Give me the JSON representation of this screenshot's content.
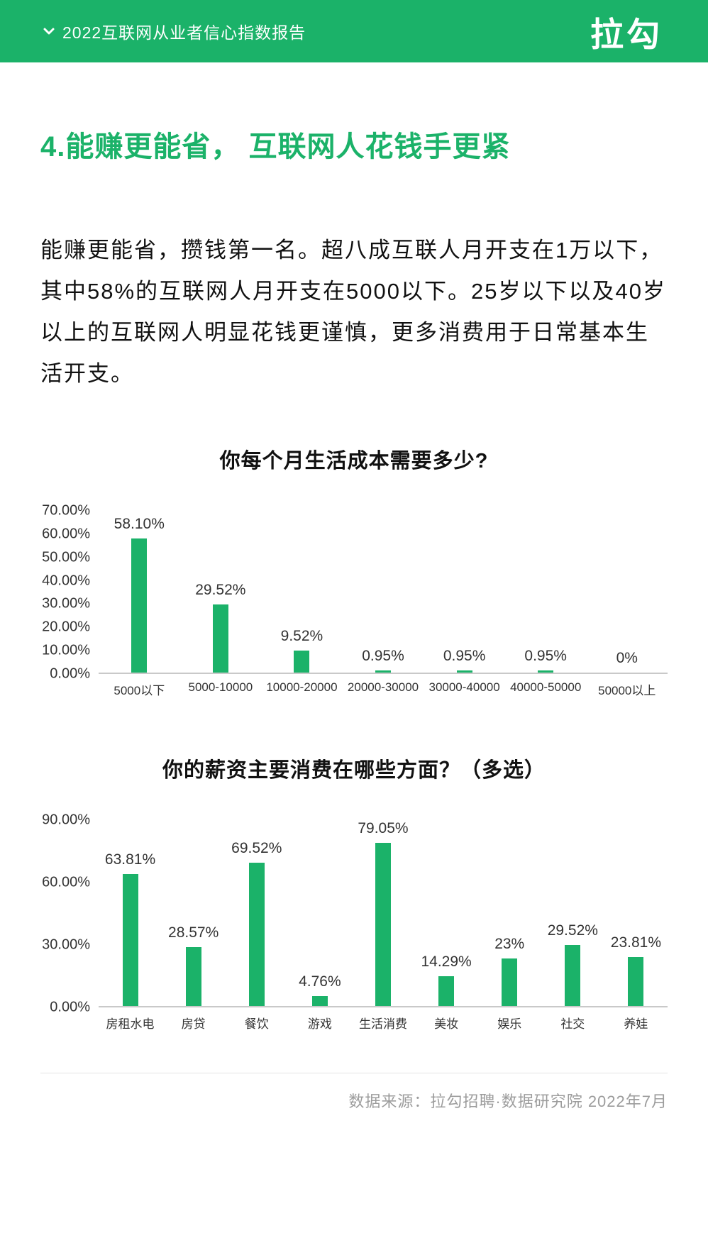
{
  "header": {
    "title": "2022互联网从业者信心指数报告",
    "logo": "拉勾",
    "chevron_icon": "chevron-down"
  },
  "colors": {
    "accent_green": "#1bb269",
    "axis_line": "#c9c9c9",
    "footer_text": "#9c9c9c",
    "body_text": "#111111"
  },
  "section": {
    "heading": "4.能赚更能省， 互联网人花钱手更紧",
    "paragraph": "能赚更能省，攒钱第一名。超八成互联人月开支在1万以下，其中58%的互联网人月开支在5000以下。25岁以下以及40岁以上的互联网人明显花钱更谨慎，更多消费用于日常基本生活开支。"
  },
  "chart_data": [
    {
      "type": "bar",
      "title": "你每个月生活成本需要多少?",
      "categories": [
        "5000以下",
        "5000-10000",
        "10000-20000",
        "20000-30000",
        "30000-40000",
        "40000-50000",
        "50000以上"
      ],
      "values": [
        58.1,
        29.52,
        9.52,
        0.95,
        0.95,
        0.95,
        0
      ],
      "value_labels": [
        "58.10%",
        "29.52%",
        "9.52%",
        "0.95%",
        "0.95%",
        "0.95%",
        "0%"
      ],
      "xlabel": "",
      "ylabel": "",
      "ylim": [
        0,
        70
      ],
      "grid": false,
      "legend": false,
      "bar_color": "#1bb269",
      "yticks": [
        {
          "value": 0,
          "label": "0.00%"
        },
        {
          "value": 10,
          "label": "10.00%"
        },
        {
          "value": 20,
          "label": "20.00%"
        },
        {
          "value": 30,
          "label": "30.00%"
        },
        {
          "value": 40,
          "label": "40.00%"
        },
        {
          "value": 50,
          "label": "50.00%"
        },
        {
          "value": 60,
          "label": "60.00%"
        },
        {
          "value": 70,
          "label": "70.00%"
        }
      ]
    },
    {
      "type": "bar",
      "title": "你的薪资主要消费在哪些方面？（多选）",
      "categories": [
        "房租水电",
        "房贷",
        "餐饮",
        "游戏",
        "生活消费",
        "美妆",
        "娱乐",
        "社交",
        "养娃"
      ],
      "values": [
        63.81,
        28.57,
        69.52,
        4.76,
        79.05,
        14.29,
        23,
        29.52,
        23.81
      ],
      "value_labels": [
        "63.81%",
        "28.57%",
        "69.52%",
        "4.76%",
        "79.05%",
        "14.29%",
        "23%",
        "29.52%",
        "23.81%"
      ],
      "xlabel": "",
      "ylabel": "",
      "ylim": [
        0,
        90
      ],
      "grid": false,
      "legend": false,
      "bar_color": "#1bb269",
      "yticks": [
        {
          "value": 0,
          "label": "0.00%"
        },
        {
          "value": 30,
          "label": "30.00%"
        },
        {
          "value": 60,
          "label": "60.00%"
        },
        {
          "value": 90,
          "label": "90.00%"
        }
      ]
    }
  ],
  "footer": {
    "source": "数据来源：拉勾招聘·数据研究院 2022年7月"
  }
}
